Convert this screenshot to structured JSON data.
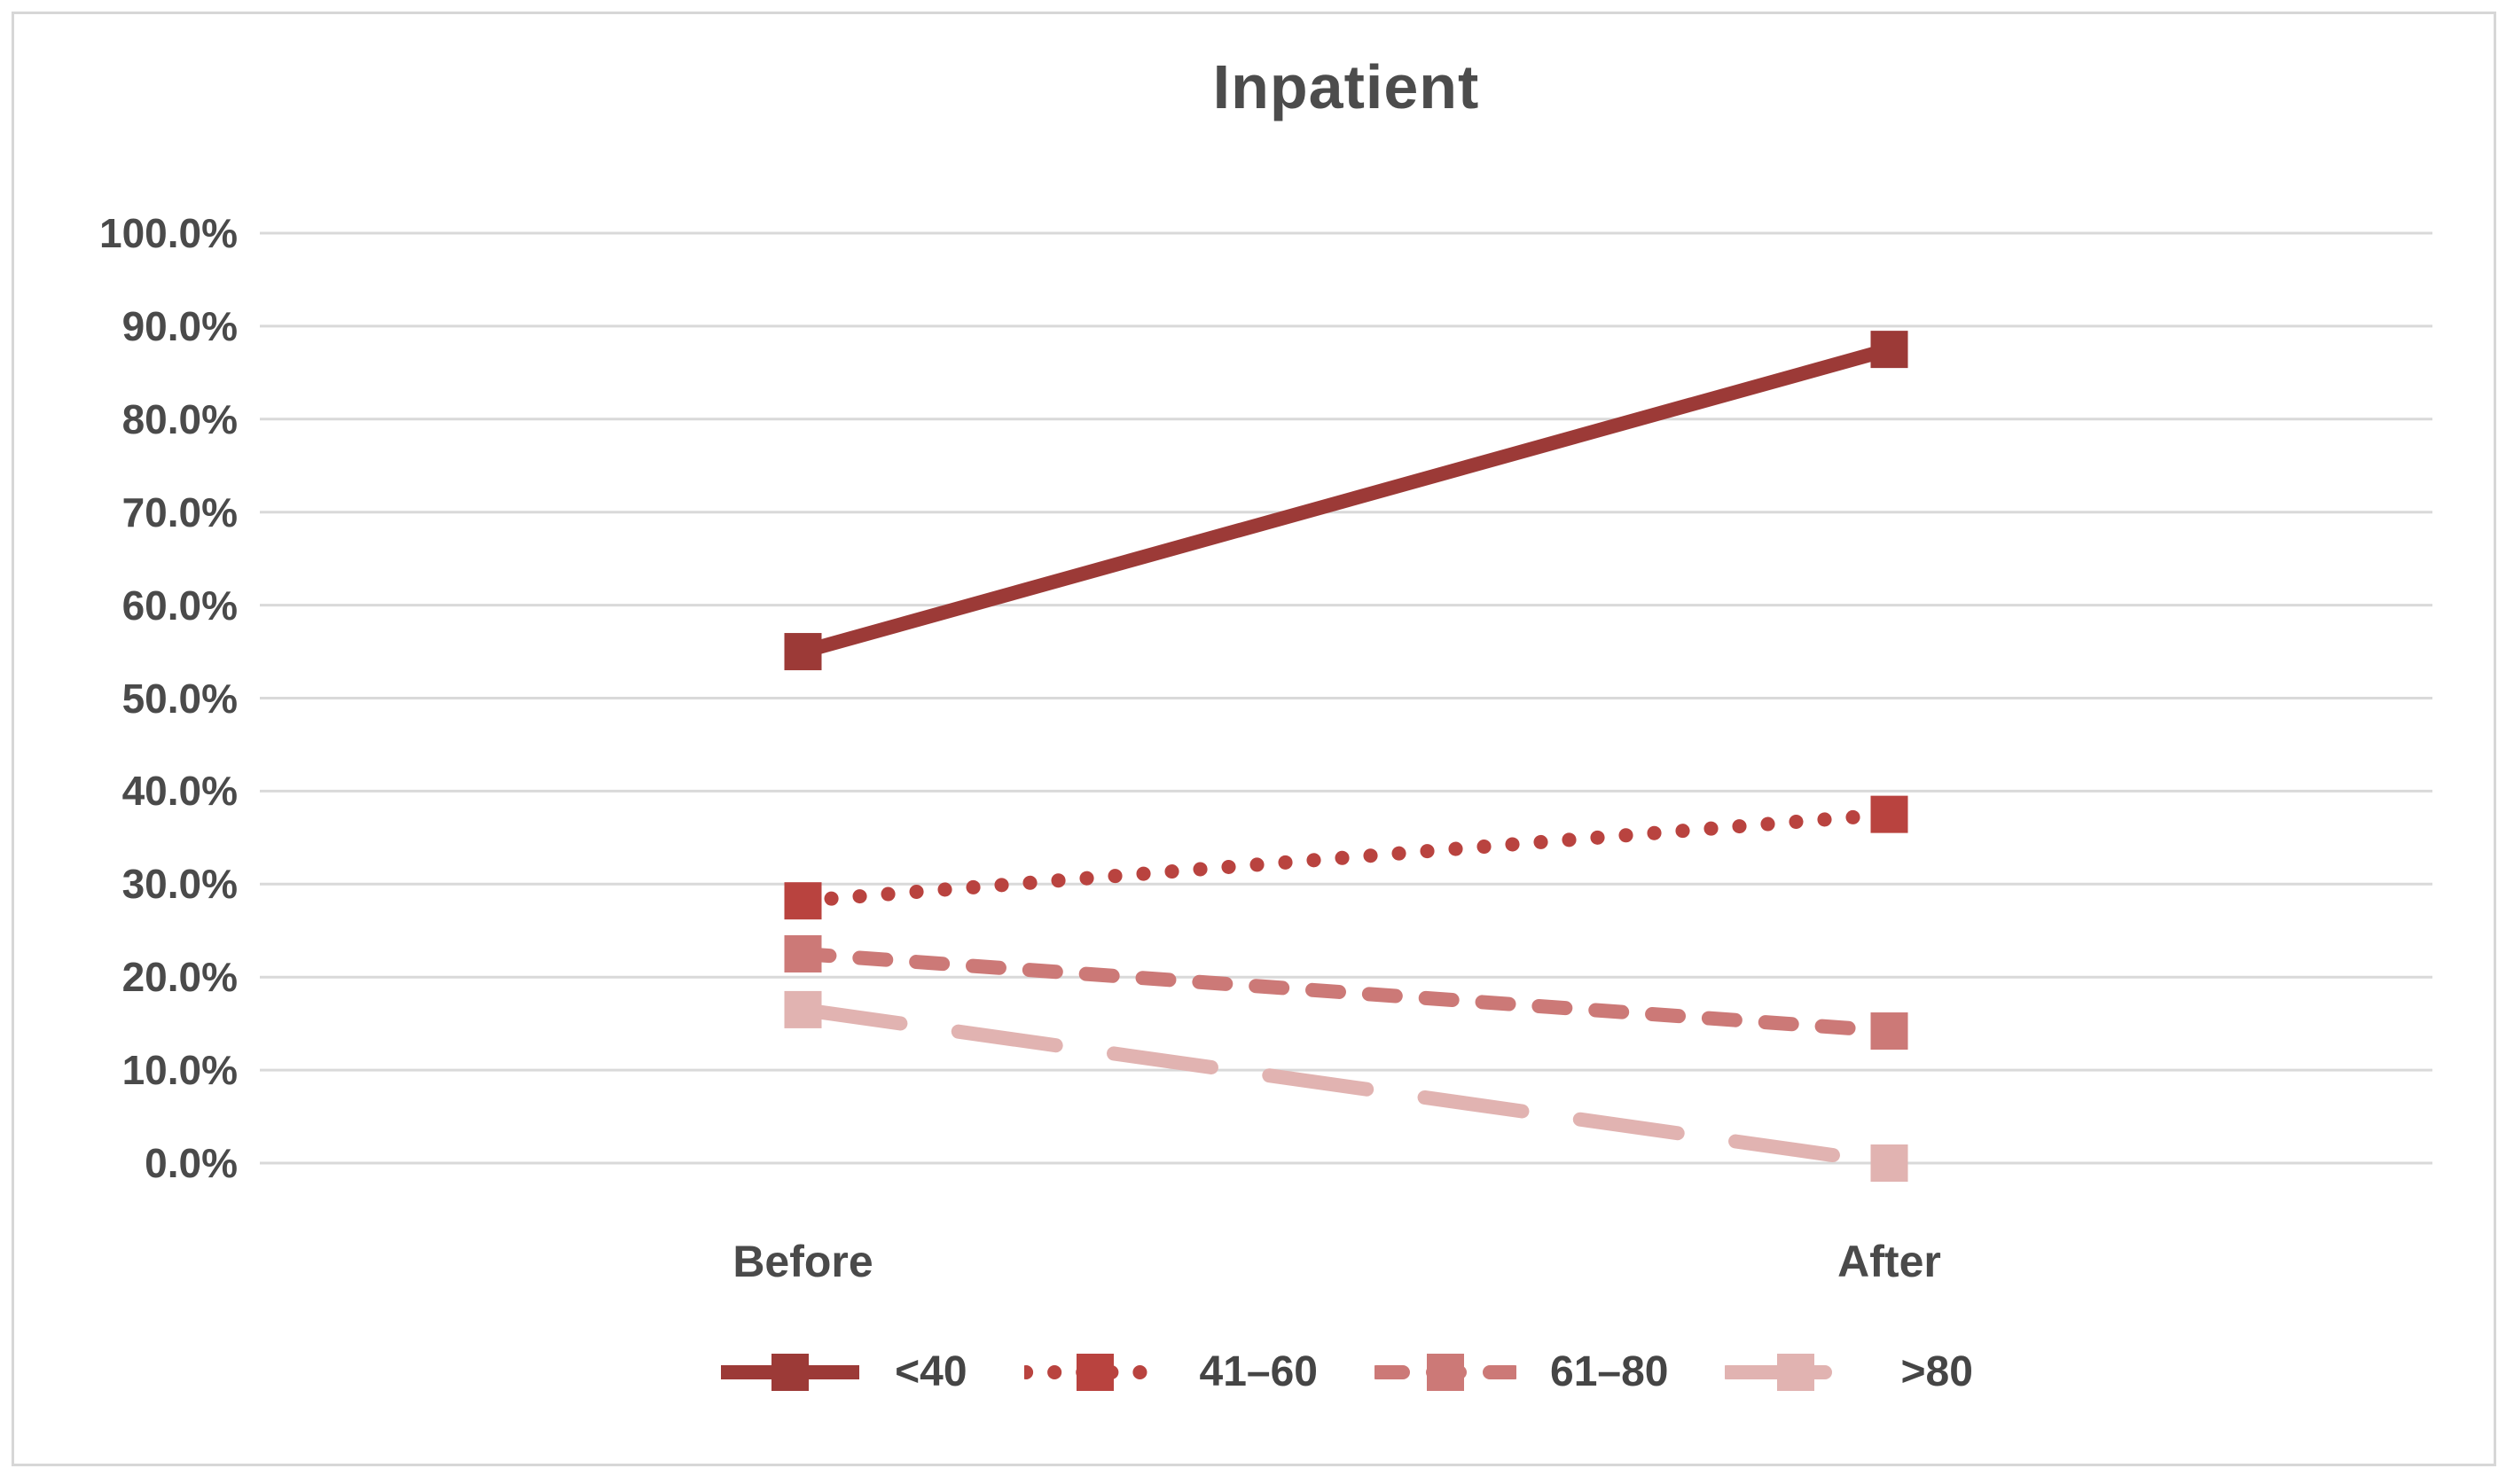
{
  "page": {
    "background": "#FFFFFF"
  },
  "chart_data": {
    "type": "line",
    "title": "Inpatient",
    "categories": [
      "Before",
      "After"
    ],
    "series": [
      {
        "name": "<40",
        "values": [
          55.0,
          87.5
        ],
        "color": "#9C3A37",
        "dash": "solid"
      },
      {
        "name": "41–60",
        "values": [
          28.2,
          37.5
        ],
        "color": "#B9433F",
        "dash": "dotted"
      },
      {
        "name": "61–80",
        "values": [
          22.5,
          14.2
        ],
        "color": "#CC7977",
        "dash": "dashed"
      },
      {
        "name": ">80",
        "values": [
          16.5,
          0.0
        ],
        "color": "#E1B3B1",
        "dash": "long-dash"
      }
    ],
    "xlabel": "",
    "ylabel": "",
    "ylim": [
      0,
      100
    ],
    "ytick_step": 10,
    "ytick_labels": [
      "100.0%",
      "90.0%",
      "80.0%",
      "70.0%",
      "60.0%",
      "50.0%",
      "40.0%",
      "30.0%",
      "20.0%",
      "10.0%",
      "0.0%"
    ],
    "grid": true,
    "legend_position": "bottom",
    "marker": "square",
    "colors": {
      "gridline": "#D9D9D9",
      "frame_border": "#D7D7D7",
      "title_text": "#4C4C4C",
      "axis_text": "#4A4A4A",
      "legend_text": "#454545"
    }
  }
}
